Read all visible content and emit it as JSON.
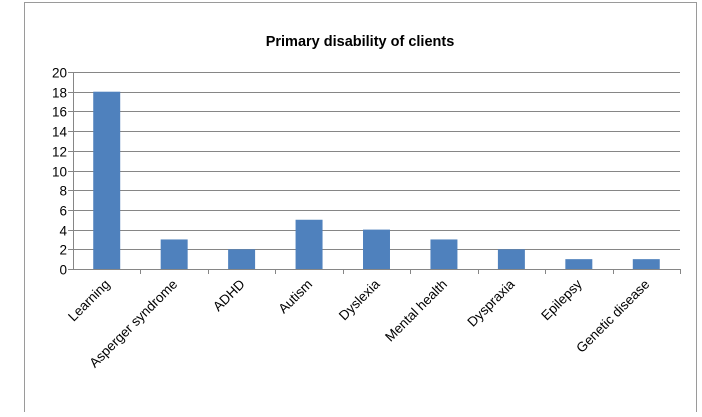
{
  "chart_data": {
    "type": "bar",
    "title": "Primary disability of clients",
    "categories": [
      "Learning",
      "Asperger syndrome",
      "ADHD",
      "Autism",
      "Dyslexia",
      "Mental health",
      "Dyspraxia",
      "Epilepsy",
      "Genetic disease"
    ],
    "values": [
      18,
      3,
      2,
      5,
      4,
      3,
      2,
      1,
      1
    ],
    "xlabel": "",
    "ylabel": "",
    "ylim": [
      0,
      20
    ],
    "yticks": [
      0,
      2,
      4,
      6,
      8,
      10,
      12,
      14,
      16,
      18,
      20
    ],
    "grid": true,
    "legend": "none",
    "bar_color": "#4F81BD",
    "gridline_color": "#868686"
  }
}
